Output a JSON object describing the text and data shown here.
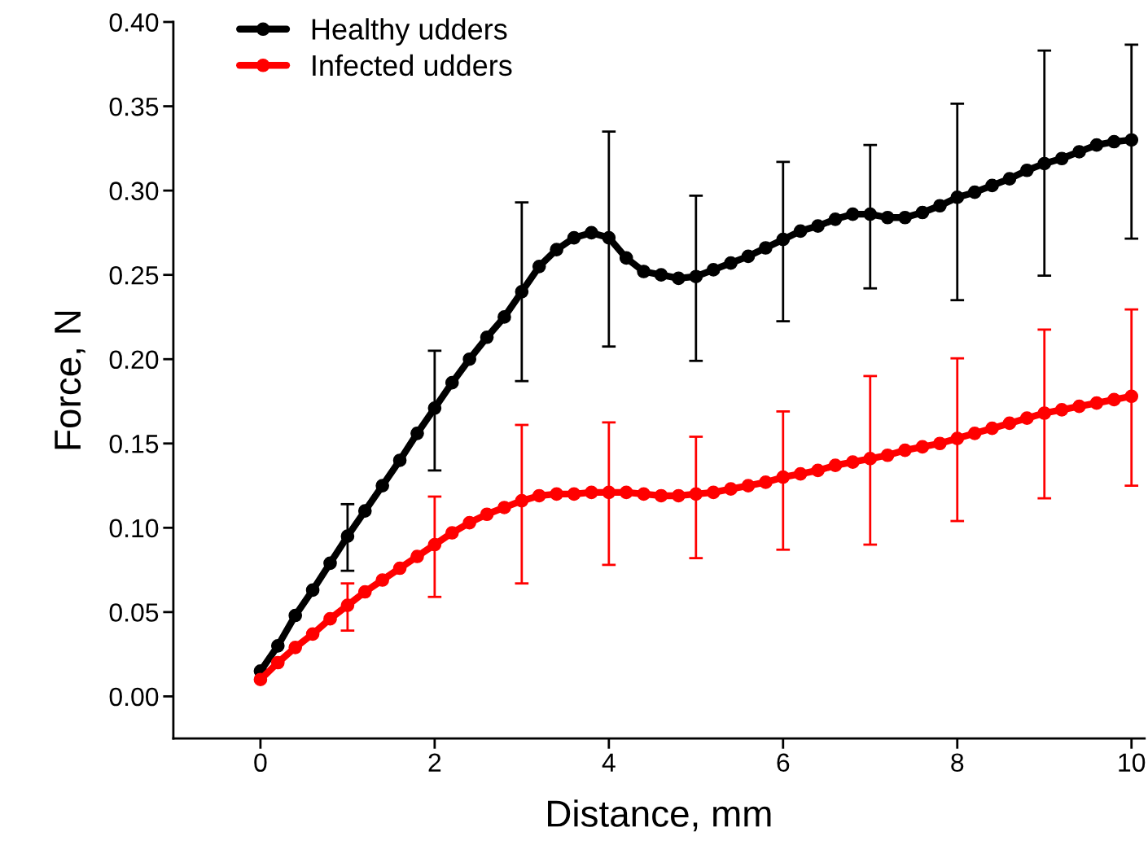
{
  "chart_data": {
    "type": "line",
    "xlabel": "Distance, mm",
    "ylabel": "Force, N",
    "x": [
      0,
      0.2,
      0.4,
      0.6,
      0.8,
      1,
      1.2,
      1.4,
      1.6,
      1.8,
      2,
      2.2,
      2.4,
      2.6,
      2.8,
      3,
      3.2,
      3.4,
      3.6,
      3.8,
      4,
      4.2,
      4.4,
      4.6,
      4.8,
      5,
      5.2,
      5.4,
      5.6,
      5.8,
      6,
      6.2,
      6.4,
      6.6,
      6.8,
      7,
      7.2,
      7.4,
      7.6,
      7.8,
      8,
      8.2,
      8.4,
      8.6,
      8.8,
      9,
      9.2,
      9.4,
      9.6,
      9.8,
      10
    ],
    "series": [
      {
        "name": "Healthy udders",
        "color": "#000000",
        "values": [
          0.015,
          0.03,
          0.048,
          0.063,
          0.079,
          0.095,
          0.11,
          0.125,
          0.14,
          0.156,
          0.171,
          0.186,
          0.2,
          0.213,
          0.225,
          0.24,
          0.255,
          0.265,
          0.272,
          0.275,
          0.272,
          0.26,
          0.252,
          0.25,
          0.248,
          0.249,
          0.253,
          0.257,
          0.261,
          0.266,
          0.271,
          0.276,
          0.279,
          0.283,
          0.286,
          0.286,
          0.284,
          0.284,
          0.287,
          0.291,
          0.296,
          0.299,
          0.303,
          0.307,
          0.312,
          0.316,
          0.319,
          0.323,
          0.327,
          0.329,
          0.33
        ],
        "errors": [
          null,
          null,
          null,
          null,
          null,
          [
            0.0745,
            0.114
          ],
          null,
          null,
          null,
          null,
          [
            0.134,
            0.205
          ],
          null,
          null,
          null,
          null,
          [
            0.187,
            0.293
          ],
          null,
          null,
          null,
          null,
          [
            0.2075,
            0.335
          ],
          null,
          null,
          null,
          null,
          [
            0.199,
            0.297
          ],
          null,
          null,
          null,
          null,
          [
            0.2225,
            0.317
          ],
          null,
          null,
          null,
          null,
          [
            0.242,
            0.327
          ],
          null,
          null,
          null,
          null,
          [
            0.235,
            0.3515
          ],
          null,
          null,
          null,
          null,
          [
            0.2495,
            0.383
          ],
          null,
          null,
          null,
          null,
          [
            0.2715,
            0.3865
          ]
        ]
      },
      {
        "name": "Infected udders",
        "color": "#ff0000",
        "values": [
          0.01,
          0.02,
          0.029,
          0.037,
          0.046,
          0.054,
          0.062,
          0.069,
          0.076,
          0.083,
          0.09,
          0.097,
          0.103,
          0.108,
          0.112,
          0.116,
          0.119,
          0.12,
          0.12,
          0.121,
          0.121,
          0.121,
          0.12,
          0.119,
          0.119,
          0.12,
          0.121,
          0.123,
          0.125,
          0.127,
          0.13,
          0.132,
          0.134,
          0.137,
          0.139,
          0.141,
          0.143,
          0.146,
          0.148,
          0.15,
          0.153,
          0.156,
          0.159,
          0.162,
          0.165,
          0.168,
          0.17,
          0.172,
          0.174,
          0.176,
          0.178
        ],
        "errors": [
          null,
          null,
          null,
          null,
          null,
          [
            0.039,
            0.067
          ],
          null,
          null,
          null,
          null,
          [
            0.059,
            0.1185
          ],
          null,
          null,
          null,
          null,
          [
            0.067,
            0.161
          ],
          null,
          null,
          null,
          null,
          [
            0.078,
            0.1625
          ],
          null,
          null,
          null,
          null,
          [
            0.082,
            0.154
          ],
          null,
          null,
          null,
          null,
          [
            0.087,
            0.169
          ],
          null,
          null,
          null,
          null,
          [
            0.09,
            0.19
          ],
          null,
          null,
          null,
          null,
          [
            0.104,
            0.2005
          ],
          null,
          null,
          null,
          null,
          [
            0.1175,
            0.2175
          ],
          null,
          null,
          null,
          null,
          [
            0.125,
            0.2295
          ]
        ]
      }
    ],
    "xlim": [
      -1,
      10.15
    ],
    "xticks": [
      0,
      2,
      4,
      6,
      8,
      10
    ],
    "ylim": [
      -0.025,
      0.4
    ],
    "yticks": [
      {
        "value": 0,
        "label": "0.00"
      },
      {
        "value": 0.05,
        "label": "0.05"
      },
      {
        "value": 0.1,
        "label": "0.10"
      },
      {
        "value": 0.15,
        "label": "0.15"
      },
      {
        "value": 0.2,
        "label": "0.20"
      },
      {
        "value": 0.25,
        "label": "0.25"
      },
      {
        "value": 0.3,
        "label": "0.30"
      },
      {
        "value": 0.35,
        "label": "0.35"
      },
      {
        "value": 0.4,
        "label": "0.40"
      }
    ],
    "grid": false,
    "legend": "top left",
    "marker": "circle",
    "line_style": "solid"
  }
}
